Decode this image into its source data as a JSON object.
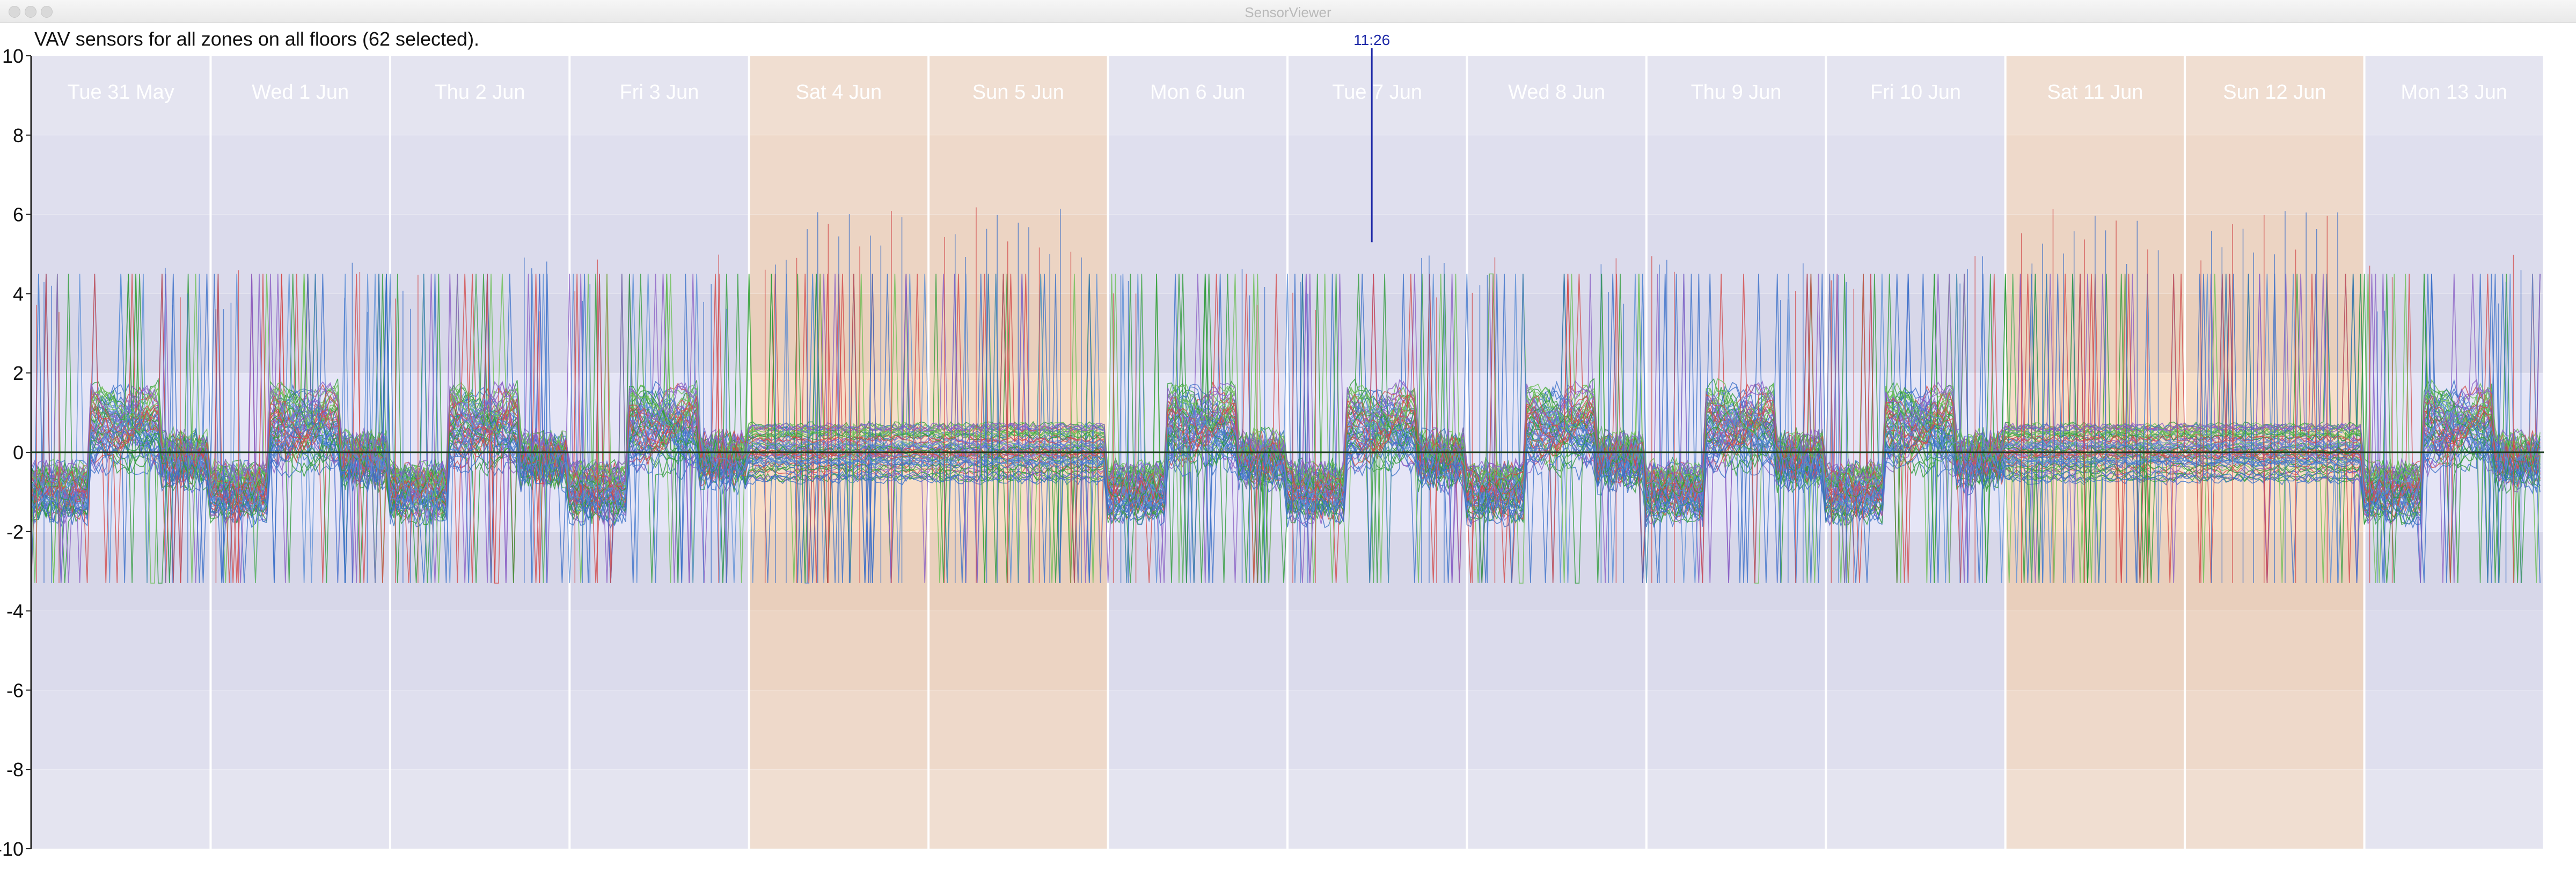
{
  "window": {
    "title": "SensorViewer",
    "controls": [
      "close",
      "minimize",
      "zoom"
    ]
  },
  "caption": "VAV sensors for all zones on all floors (62 selected).",
  "cursor": {
    "time_label": "11:26",
    "day": "Tue 7 Jun"
  },
  "chart_data": {
    "type": "line",
    "title": "VAV sensors for all zones on all floors (62 selected).",
    "xlabel": "",
    "ylabel": "",
    "ylim": [
      -10,
      10
    ],
    "yticks": [
      10,
      8,
      6,
      4,
      2,
      0,
      -2,
      -4,
      -6,
      -8,
      -10
    ],
    "grid": true,
    "legend": "none",
    "days": [
      {
        "label": "Tue 31 May",
        "weekend": false
      },
      {
        "label": "Wed 1 Jun",
        "weekend": false
      },
      {
        "label": "Thu 2 Jun",
        "weekend": false
      },
      {
        "label": "Fri 3 Jun",
        "weekend": false
      },
      {
        "label": "Sat 4 Jun",
        "weekend": true
      },
      {
        "label": "Sun 5 Jun",
        "weekend": true
      },
      {
        "label": "Mon 6 Jun",
        "weekend": false
      },
      {
        "label": "Tue 7 Jun",
        "weekend": false
      },
      {
        "label": "Wed 8 Jun",
        "weekend": false
      },
      {
        "label": "Thu 9 Jun",
        "weekend": false
      },
      {
        "label": "Fri 10 Jun",
        "weekend": false
      },
      {
        "label": "Sat 11 Jun",
        "weekend": true
      },
      {
        "label": "Sun 12 Jun",
        "weekend": true
      },
      {
        "label": "Mon 13 Jun",
        "weekend": false
      }
    ],
    "series_count": 62,
    "series_colors": [
      "#3a6fc8",
      "#5b8fd6",
      "#2e9b3a",
      "#6cbf55",
      "#d24a4a",
      "#8a5fc4"
    ],
    "colors": {
      "weekday_band_light": "#e4e4f6",
      "weekday_band_dark": "#d1d1e6",
      "weekend_band_light": "#f7dcc6",
      "weekend_band_dark": "#e6c8b2",
      "cursor": "#1f2aa8",
      "zero_line": "#1a3a1a"
    }
  }
}
